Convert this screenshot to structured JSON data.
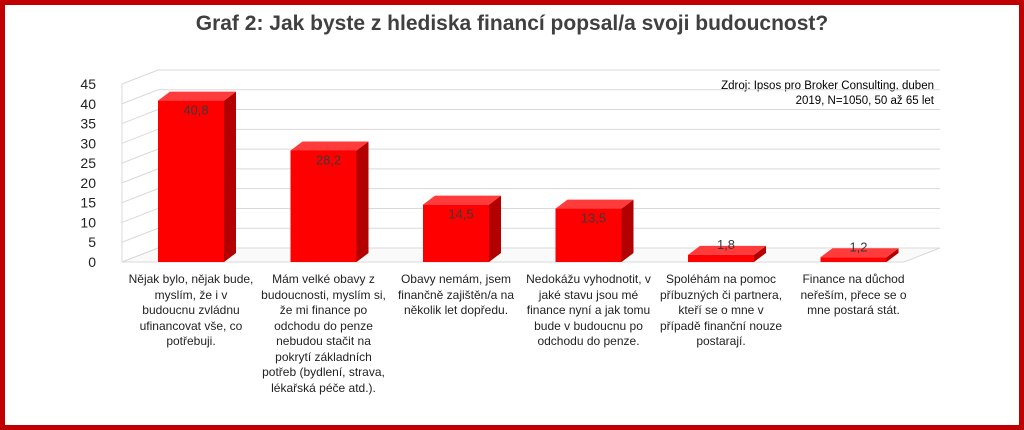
{
  "chart_data": {
    "type": "bar",
    "title": "Graf 2: Jak byste z hlediska financí popsal/a svoji budoucnost?",
    "note": "Zdroj: Ipsos pro Broker Consulting, duben 2019, N=1050, 50 až 65 let",
    "ylim": [
      0,
      45
    ],
    "yticks": [
      "0",
      "5",
      "10",
      "15",
      "20",
      "25",
      "30",
      "35",
      "40",
      "45"
    ],
    "categories": [
      "Nějak bylo, nějak bude, myslím, že i v budoucnu zvládnu ufinancovat vše, co potřebuji.",
      "Mám velké obavy z budoucnosti, myslím si, že mi finance po odchodu do penze nebudou stačit na pokrytí základních potřeb (bydlení, strava, lékařská péče atd.).",
      "Obavy nemám, jsem finančně zajištěn/a na několik let dopředu.",
      "Nedokážu vyhodnotit, v jaké stavu jsou mé finance nyní a jak tomu bude v budoucnu po odchodu do penze.",
      "Spoléhám na pomoc příbuzných či partnera, kteří se o mne v případě finanční nouze postarají.",
      "Finance na důchod neřeším, přece se o mne postará stát."
    ],
    "values": [
      40.8,
      28.2,
      14.5,
      13.5,
      1.8,
      1.2
    ],
    "value_labels": [
      "40,8",
      "28,2",
      "14,5",
      "13,5",
      "1,8",
      "1,2"
    ],
    "grid": true,
    "bar_style": "3d",
    "colors": {
      "front": "#ff0000",
      "top": "#ff3b3b",
      "side": "#b30000",
      "frame": "#c00000"
    }
  }
}
